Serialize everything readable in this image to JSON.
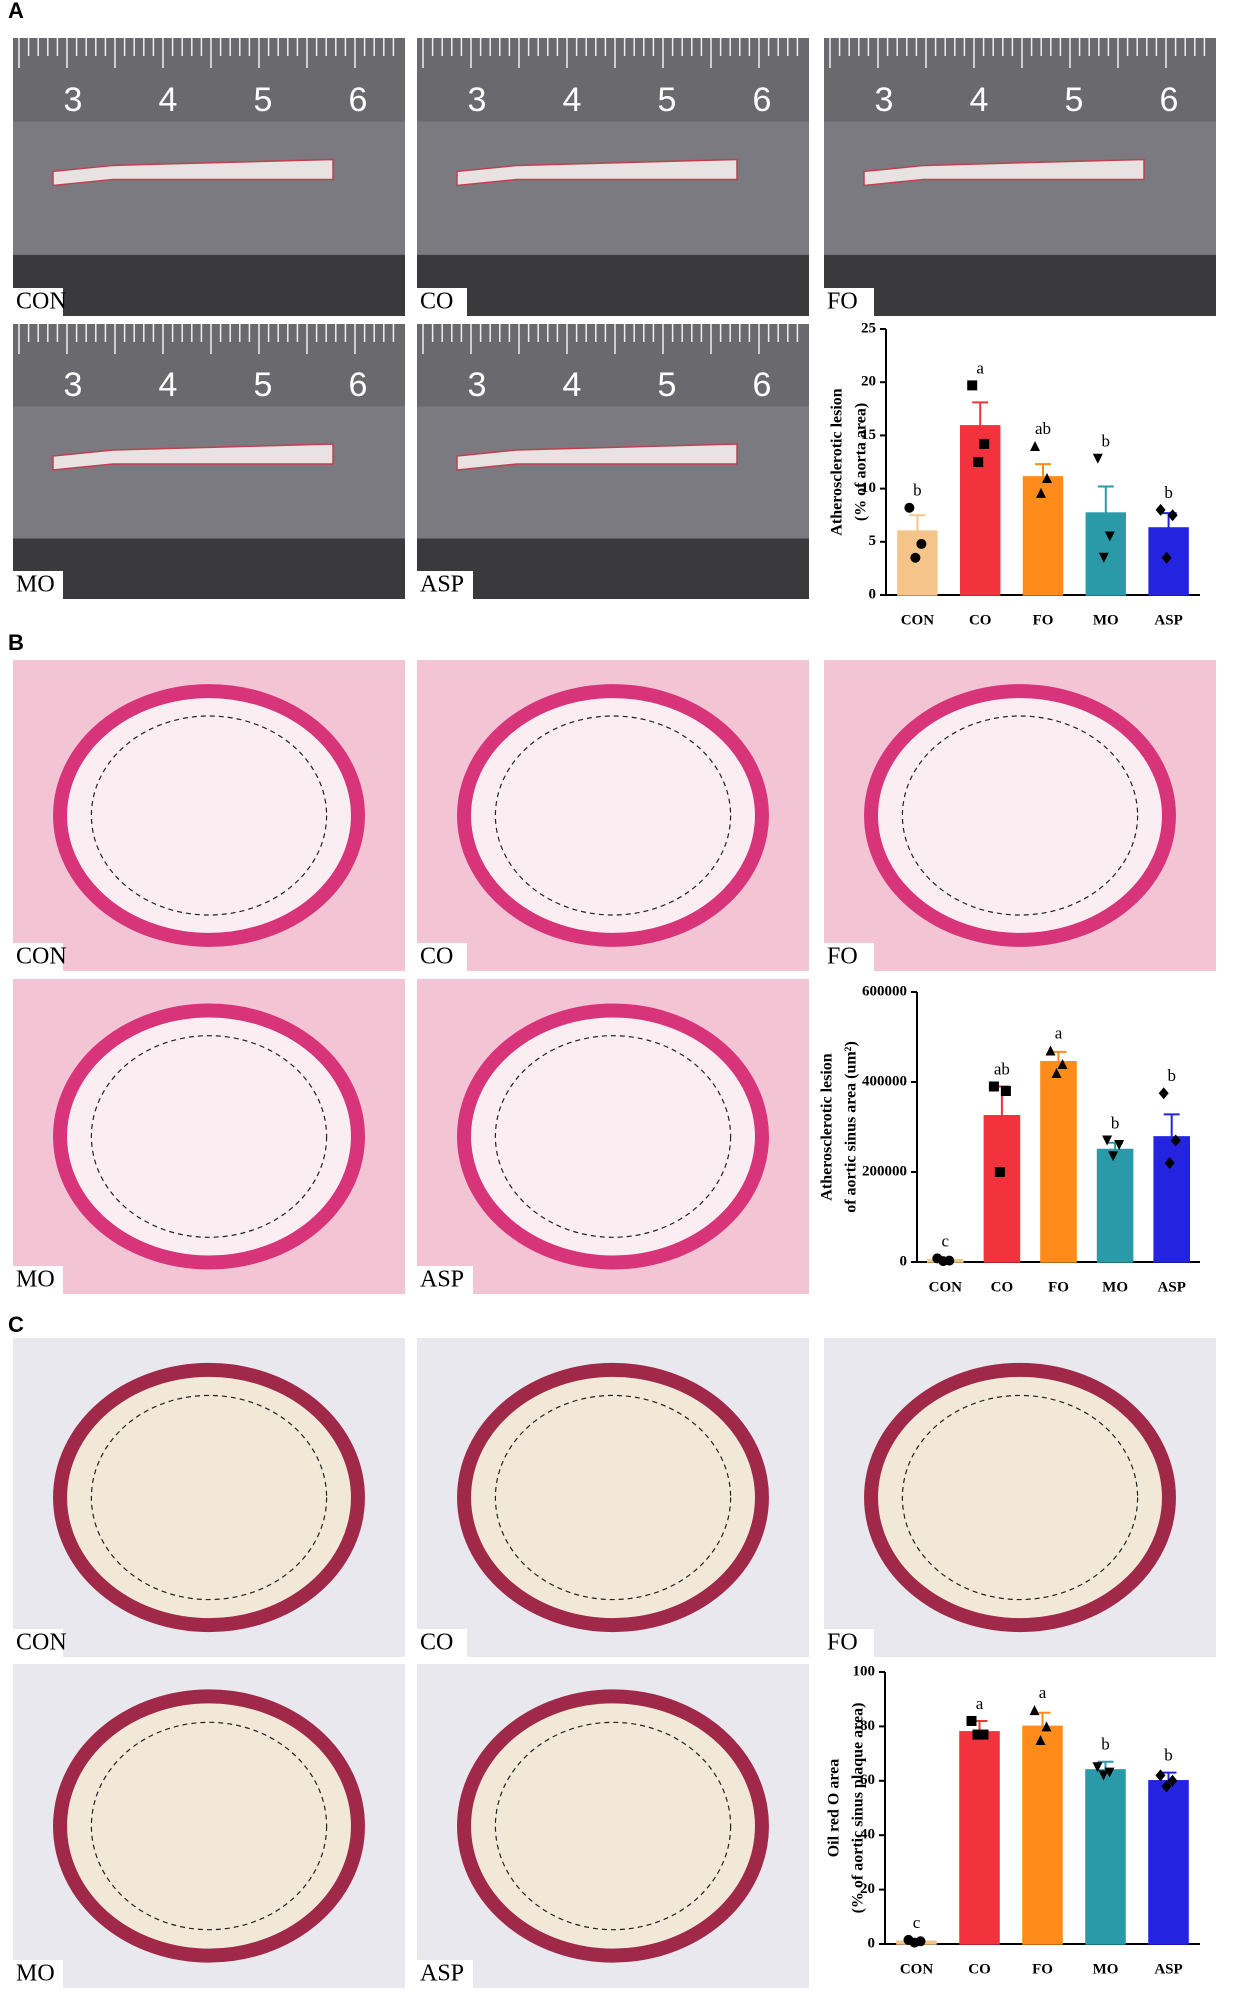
{
  "panel_labels": [
    "A",
    "B",
    "C"
  ],
  "panel_a_photos": [
    {
      "label": "CON",
      "ruler": [
        "3",
        "4",
        "5",
        "6"
      ]
    },
    {
      "label": "CO",
      "ruler": [
        "3",
        "4",
        "5",
        "6"
      ]
    },
    {
      "label": "FO",
      "ruler": [
        "3",
        "4",
        "5",
        "6"
      ]
    },
    {
      "label": "MO",
      "ruler": [
        "3",
        "4",
        "5",
        "6"
      ]
    },
    {
      "label": "ASP",
      "ruler": [
        "3",
        "4",
        "5",
        "6"
      ]
    }
  ],
  "panel_b_photos": [
    {
      "label": "CON"
    },
    {
      "label": "CO"
    },
    {
      "label": "FO"
    },
    {
      "label": "MO"
    },
    {
      "label": "ASP"
    }
  ],
  "panel_c_photos": [
    {
      "label": "CON"
    },
    {
      "label": "CO"
    },
    {
      "label": "FO"
    },
    {
      "label": "MO"
    },
    {
      "label": "ASP"
    }
  ],
  "chart_data": [
    {
      "type": "bar",
      "y_label": [
        "Atherosclerotic lesion",
        "(% of aorta area)"
      ],
      "categories": [
        "CON",
        "CO",
        "FO",
        "MO",
        "ASP"
      ],
      "values": [
        6,
        15.9,
        11.1,
        7.7,
        6.3
      ],
      "errors": [
        1.5,
        2.2,
        1.2,
        2.5,
        1.4
      ],
      "annotations": [
        "b",
        "a",
        "ab",
        "b",
        "b"
      ],
      "points": [
        [
          8.2,
          4.8,
          3.5
        ],
        [
          19.7,
          14.2,
          12.5
        ],
        [
          14,
          11,
          9.6
        ],
        [
          12.8,
          5.5,
          3.5
        ],
        [
          8,
          7.5,
          3.5
        ]
      ],
      "markers": [
        "circle",
        "square",
        "triangle-up",
        "triangle-down",
        "diamond"
      ],
      "colors": [
        "#f5c48a",
        "#f2333d",
        "#ff8c1a",
        "#2a9aa8",
        "#2424e0"
      ],
      "ylim": [
        0,
        25
      ],
      "yticks": [
        0,
        5,
        10,
        15,
        20,
        25
      ]
    },
    {
      "type": "bar",
      "y_label": [
        "Atherosclerotic lesion",
        "of aortic sinus area (um²)"
      ],
      "categories": [
        "CON",
        "CO",
        "FO",
        "MO",
        "ASP"
      ],
      "values": [
        5000,
        325000,
        445000,
        250000,
        278000
      ],
      "errors": [
        3000,
        65000,
        22000,
        15000,
        50000
      ],
      "annotations": [
        "c",
        "ab",
        "a",
        "b",
        "b"
      ],
      "points": [
        [
          8000,
          3000,
          2000
        ],
        [
          390000,
          380000,
          200000
        ],
        [
          470000,
          440000,
          420000
        ],
        [
          270000,
          260000,
          235000
        ],
        [
          375000,
          270000,
          220000
        ]
      ],
      "markers": [
        "circle",
        "square",
        "triangle-up",
        "triangle-down",
        "diamond"
      ],
      "colors": [
        "#f5c48a",
        "#f2333d",
        "#ff8c1a",
        "#2a9aa8",
        "#2424e0"
      ],
      "ylim": [
        0,
        600000
      ],
      "yticks": [
        0,
        200000,
        400000,
        600000
      ]
    },
    {
      "type": "bar",
      "y_label": [
        "Oil red O area",
        "(% of aortic sinus plaque area)"
      ],
      "categories": [
        "CON",
        "CO",
        "FO",
        "MO",
        "ASP"
      ],
      "values": [
        1,
        78,
        80,
        64,
        60
      ],
      "errors": [
        0.5,
        4,
        5,
        3,
        3
      ],
      "annotations": [
        "c",
        "a",
        "a",
        "b",
        "b"
      ],
      "points": [
        [
          1.5,
          1,
          0.5
        ],
        [
          82,
          77,
          77
        ],
        [
          86,
          80,
          75
        ],
        [
          65,
          63,
          62
        ],
        [
          62,
          60,
          58
        ]
      ],
      "markers": [
        "circle",
        "square",
        "triangle-up",
        "triangle-down",
        "diamond"
      ],
      "colors": [
        "#f5c48a",
        "#f2333d",
        "#ff8c1a",
        "#2a9aa8",
        "#2424e0"
      ],
      "ylim": [
        0,
        100
      ],
      "yticks": [
        0,
        20,
        40,
        60,
        80,
        100
      ]
    }
  ]
}
